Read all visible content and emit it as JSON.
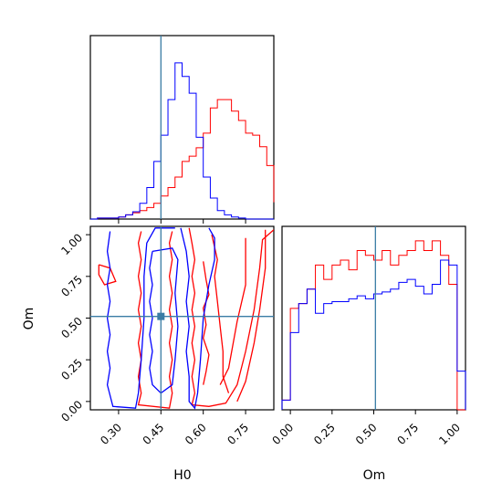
{
  "chart_data": {
    "type": "corner",
    "parameters": [
      "H0",
      "Om"
    ],
    "truth": {
      "H0": 0.45,
      "Om": 0.51
    },
    "colors": {
      "red": "#ff0000",
      "blue": "#0000ff",
      "truth": "#3a7ca5"
    },
    "panels": [
      {
        "id": "hist-H0",
        "type": "histogram",
        "xlim": [
          0.2,
          0.85
        ],
        "xticks": [
          0.3,
          0.45,
          0.6,
          0.75
        ],
        "bins": [
          0.2,
          0.225,
          0.25,
          0.275,
          0.3,
          0.325,
          0.35,
          0.375,
          0.4,
          0.425,
          0.45,
          0.475,
          0.5,
          0.525,
          0.55,
          0.575,
          0.6,
          0.625,
          0.65,
          0.675,
          0.7,
          0.725,
          0.75,
          0.775,
          0.8,
          0.825,
          0.85
        ],
        "series": [
          {
            "name": "red",
            "counts": [
              0,
              1,
              1,
              1,
              2,
              4,
              6,
              8,
              11,
              15,
              22,
              30,
              40,
              55,
              60,
              68,
              82,
              106,
              114,
              114,
              103,
              94,
              82,
              80,
              69,
              51,
              16
            ]
          },
          {
            "name": "blue",
            "counts": [
              0,
              1,
              1,
              1,
              2,
              4,
              7,
              15,
              30,
              55,
              80,
              114,
              149,
              136,
              120,
              78,
              40,
              20,
              8,
              4,
              2,
              1,
              0,
              0,
              0,
              0,
              0
            ]
          }
        ],
        "ymax": 175
      },
      {
        "id": "hist-Om",
        "type": "histogram",
        "xlim": [
          -0.05,
          1.05
        ],
        "xticks": [
          0.0,
          0.25,
          0.5,
          0.75,
          1.0
        ],
        "bins": [
          -0.05,
          0.0,
          0.05,
          0.1,
          0.15,
          0.2,
          0.25,
          0.3,
          0.35,
          0.4,
          0.45,
          0.5,
          0.55,
          0.6,
          0.65,
          0.7,
          0.75,
          0.8,
          0.85,
          0.9,
          0.95,
          1.0,
          1.05
        ],
        "series": [
          {
            "name": "red",
            "counts": [
              10,
              105,
              110,
              125,
              150,
              135,
              150,
              155,
              145,
              165,
              160,
              155,
              165,
              150,
              160,
              165,
              175,
              165,
              175,
              160,
              130,
              0
            ]
          },
          {
            "name": "blue",
            "counts": [
              10,
              80,
              110,
              125,
              100,
              110,
              112,
              112,
              115,
              118,
              115,
              120,
              122,
              125,
              132,
              135,
              128,
              120,
              130,
              155,
              150,
              40
            ]
          }
        ],
        "ymax": 190
      },
      {
        "id": "contour-H0-Om",
        "type": "contour",
        "xlim": [
          0.2,
          0.85
        ],
        "ylim": [
          -0.05,
          1.05
        ],
        "xticks": [
          0.3,
          0.45,
          0.6,
          0.75
        ],
        "yticks": [
          0.0,
          0.25,
          0.5,
          0.75,
          1.0
        ],
        "xlabel": "H0",
        "ylabel": "Om",
        "series": [
          {
            "name": "red",
            "paths": [
              [
                [
                  0.38,
                  1.02
                ],
                [
                  0.37,
                  0.95
                ],
                [
                  0.38,
                  0.85
                ],
                [
                  0.37,
                  0.75
                ],
                [
                  0.38,
                  0.65
                ],
                [
                  0.37,
                  0.55
                ],
                [
                  0.38,
                  0.45
                ],
                [
                  0.37,
                  0.35
                ],
                [
                  0.38,
                  0.25
                ],
                [
                  0.37,
                  0.15
                ],
                [
                  0.38,
                  0.05
                ],
                [
                  0.37,
                  -0.02
                ],
                [
                  0.48,
                  -0.04
                ],
                [
                  0.49,
                  0.05
                ],
                [
                  0.48,
                  0.15
                ],
                [
                  0.49,
                  0.25
                ],
                [
                  0.48,
                  0.35
                ],
                [
                  0.49,
                  0.45
                ],
                [
                  0.48,
                  0.55
                ],
                [
                  0.49,
                  0.65
                ],
                [
                  0.48,
                  0.75
                ],
                [
                  0.49,
                  0.85
                ],
                [
                  0.48,
                  0.95
                ],
                [
                  0.49,
                  1.02
                ]
              ],
              [
                [
                  0.55,
                  1.04
                ],
                [
                  0.56,
                  0.95
                ],
                [
                  0.57,
                  0.85
                ],
                [
                  0.56,
                  0.75
                ],
                [
                  0.57,
                  0.65
                ],
                [
                  0.56,
                  0.55
                ],
                [
                  0.57,
                  0.45
                ],
                [
                  0.56,
                  0.35
                ],
                [
                  0.57,
                  0.25
                ],
                [
                  0.56,
                  0.15
                ],
                [
                  0.57,
                  0.05
                ],
                [
                  0.56,
                  -0.02
                ],
                [
                  0.62,
                  -0.03
                ],
                [
                  0.68,
                  -0.01
                ],
                [
                  0.72,
                  0.1
                ],
                [
                  0.75,
                  0.3
                ],
                [
                  0.78,
                  0.55
                ],
                [
                  0.8,
                  0.8
                ],
                [
                  0.81,
                  0.97
                ],
                [
                  0.85,
                  1.03
                ]
              ],
              [
                [
                  0.63,
                  1.0
                ],
                [
                  0.65,
                  0.85
                ],
                [
                  0.64,
                  0.75
                ],
                [
                  0.65,
                  0.6
                ],
                [
                  0.66,
                  0.45
                ],
                [
                  0.67,
                  0.3
                ],
                [
                  0.67,
                  0.15
                ],
                [
                  0.69,
                  0.05
                ]
              ],
              [
                [
                  0.6,
                  0.84
                ],
                [
                  0.61,
                  0.73
                ],
                [
                  0.62,
                  0.64
                ],
                [
                  0.6,
                  0.56
                ],
                [
                  0.61,
                  0.46
                ],
                [
                  0.6,
                  0.38
                ],
                [
                  0.62,
                  0.28
                ],
                [
                  0.61,
                  0.18
                ],
                [
                  0.6,
                  0.1
                ]
              ],
              [
                [
                  0.23,
                  0.82
                ],
                [
                  0.27,
                  0.8
                ],
                [
                  0.29,
                  0.72
                ],
                [
                  0.25,
                  0.7
                ],
                [
                  0.23,
                  0.76
                ],
                [
                  0.23,
                  0.82
                ]
              ],
              [
                [
                  0.75,
                  0.98
                ],
                [
                  0.75,
                  0.7
                ],
                [
                  0.72,
                  0.48
                ],
                [
                  0.69,
                  0.2
                ],
                [
                  0.66,
                  0.1
                ]
              ],
              [
                [
                  0.82,
                  1.03
                ],
                [
                  0.82,
                  0.8
                ],
                [
                  0.8,
                  0.55
                ],
                [
                  0.78,
                  0.35
                ],
                [
                  0.75,
                  0.12
                ],
                [
                  0.72,
                  0.0
                ]
              ]
            ]
          },
          {
            "name": "blue",
            "paths": [
              [
                [
                  0.27,
                  1.02
                ],
                [
                  0.26,
                  0.9
                ],
                [
                  0.27,
                  0.8
                ],
                [
                  0.26,
                  0.7
                ],
                [
                  0.27,
                  0.6
                ],
                [
                  0.26,
                  0.5
                ],
                [
                  0.27,
                  0.4
                ],
                [
                  0.26,
                  0.3
                ],
                [
                  0.27,
                  0.2
                ],
                [
                  0.26,
                  0.1
                ],
                [
                  0.28,
                  -0.03
                ],
                [
                  0.36,
                  -0.04
                ],
                [
                  0.37,
                  0.05
                ],
                [
                  0.38,
                  0.25
                ],
                [
                  0.39,
                  0.5
                ],
                [
                  0.39,
                  0.75
                ],
                [
                  0.4,
                  0.95
                ],
                [
                  0.43,
                  1.04
                ],
                [
                  0.5,
                  1.04
                ]
              ],
              [
                [
                  0.42,
                  0.9
                ],
                [
                  0.41,
                  0.8
                ],
                [
                  0.42,
                  0.7
                ],
                [
                  0.41,
                  0.6
                ],
                [
                  0.42,
                  0.5
                ],
                [
                  0.41,
                  0.4
                ],
                [
                  0.42,
                  0.3
                ],
                [
                  0.41,
                  0.2
                ],
                [
                  0.42,
                  0.1
                ],
                [
                  0.45,
                  0.05
                ],
                [
                  0.49,
                  0.1
                ],
                [
                  0.5,
                  0.25
                ],
                [
                  0.51,
                  0.45
                ],
                [
                  0.5,
                  0.65
                ],
                [
                  0.51,
                  0.85
                ],
                [
                  0.49,
                  0.92
                ],
                [
                  0.42,
                  0.9
                ]
              ],
              [
                [
                  0.52,
                  1.04
                ],
                [
                  0.54,
                  0.9
                ],
                [
                  0.55,
                  0.75
                ],
                [
                  0.54,
                  0.6
                ],
                [
                  0.55,
                  0.45
                ],
                [
                  0.54,
                  0.3
                ],
                [
                  0.55,
                  0.15
                ],
                [
                  0.55,
                  0.0
                ],
                [
                  0.57,
                  -0.04
                ],
                [
                  0.58,
                  0.05
                ],
                [
                  0.59,
                  0.25
                ],
                [
                  0.6,
                  0.5
                ],
                [
                  0.62,
                  0.7
                ],
                [
                  0.64,
                  0.85
                ],
                [
                  0.64,
                  0.98
                ],
                [
                  0.62,
                  1.04
                ]
              ]
            ]
          }
        ]
      }
    ]
  }
}
